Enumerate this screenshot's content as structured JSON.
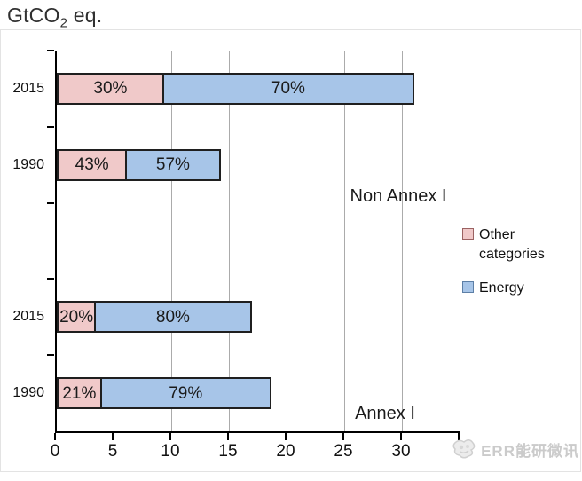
{
  "title": {
    "prefix": "GtCO",
    "subscript": "2",
    "suffix": " eq."
  },
  "chart_data": {
    "type": "bar",
    "orientation": "horizontal",
    "value_unit_label": "GtCO2 eq.",
    "x_axis": {
      "min": 0,
      "max": 35,
      "tick_step": 5,
      "tick_labels": [
        "0",
        "5",
        "10",
        "15",
        "20",
        "25",
        "30"
      ],
      "grid": true
    },
    "legend": {
      "position": "right",
      "entries": [
        {
          "name": "Other categories",
          "fill": "#f0c9c9",
          "border": "#9b6262"
        },
        {
          "name": "Energy",
          "fill": "#a7c5e8",
          "border": "#5d7fa6"
        }
      ]
    },
    "groups": [
      {
        "name": "Non Annex I",
        "rows": [
          {
            "year": "2015",
            "slot": 0,
            "total_est": 31.0,
            "segments": [
              {
                "series": "Other categories",
                "value_est": 9.3,
                "label": "30%"
              },
              {
                "series": "Energy",
                "value_est": 21.7,
                "label": "70%"
              }
            ]
          },
          {
            "year": "1990",
            "slot": 1,
            "total_est": 14.2,
            "segments": [
              {
                "series": "Other categories",
                "value_est": 6.1,
                "label": "43%"
              },
              {
                "series": "Energy",
                "value_est": 8.1,
                "label": "57%"
              }
            ]
          }
        ]
      },
      {
        "name": "Annex I",
        "rows": [
          {
            "year": "2015",
            "slot": 3,
            "total_est": 16.9,
            "segments": [
              {
                "series": "Other categories",
                "value_est": 3.4,
                "label": "20%"
              },
              {
                "series": "Energy",
                "value_est": 13.5,
                "label": "80%"
              }
            ]
          },
          {
            "year": "1990",
            "slot": 4,
            "total_est": 18.6,
            "segments": [
              {
                "series": "Other categories",
                "value_est": 3.9,
                "label": "21%"
              },
              {
                "series": "Energy",
                "value_est": 14.7,
                "label": "79%"
              }
            ]
          }
        ]
      }
    ]
  },
  "watermark": {
    "text": "ERR能研微讯"
  }
}
